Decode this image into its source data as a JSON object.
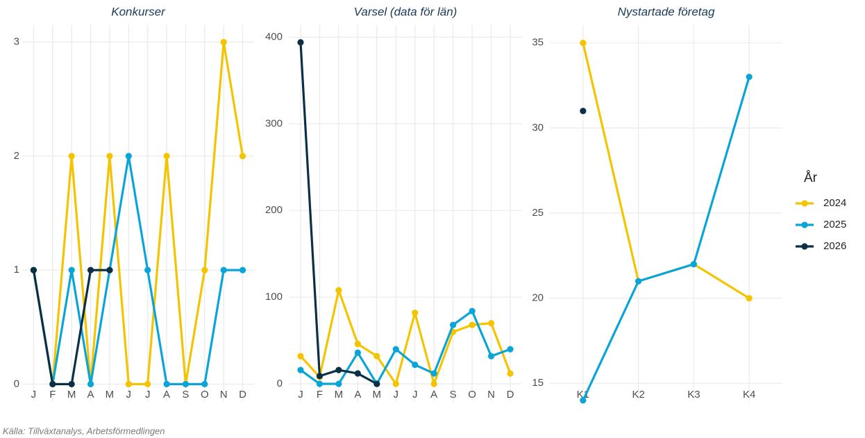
{
  "chart_data": [
    {
      "type": "line",
      "title": "Konkurser",
      "categories": [
        "J",
        "F",
        "M",
        "A",
        "M",
        "J",
        "J",
        "A",
        "S",
        "O",
        "N",
        "D"
      ],
      "ylim": [
        -0.15,
        3.15
      ],
      "yticks": [
        0,
        1,
        2,
        3
      ],
      "grid": true,
      "series": [
        {
          "name": "2024",
          "color": "#f5c400",
          "values": [
            1,
            0,
            2,
            0,
            2,
            0,
            0,
            2,
            0,
            1,
            3,
            2
          ]
        },
        {
          "name": "2025",
          "color": "#0aa5d8",
          "values": [
            1,
            0,
            1,
            0,
            1,
            2,
            1,
            0,
            0,
            0,
            1,
            1
          ]
        },
        {
          "name": "2026",
          "color": "#0b2f45",
          "values": [
            1,
            0,
            0,
            1,
            1,
            null,
            null,
            null,
            null,
            null,
            null,
            null
          ]
        }
      ]
    },
    {
      "type": "line",
      "title": "Varsel (data för län)",
      "categories": [
        "J",
        "F",
        "M",
        "A",
        "M",
        "J",
        "J",
        "A",
        "S",
        "O",
        "N",
        "D"
      ],
      "ylim": [
        -20,
        414
      ],
      "yticks": [
        0,
        100,
        200,
        300,
        400
      ],
      "grid": true,
      "series": [
        {
          "name": "2024",
          "color": "#f5c400",
          "values": [
            32,
            8,
            108,
            46,
            32,
            0,
            82,
            0,
            60,
            68,
            70,
            12
          ]
        },
        {
          "name": "2025",
          "color": "#0aa5d8",
          "values": [
            16,
            0,
            0,
            36,
            0,
            40,
            22,
            12,
            68,
            84,
            32,
            40
          ]
        },
        {
          "name": "2026",
          "color": "#0b2f45",
          "values": [
            394,
            9,
            16,
            12,
            0,
            null,
            null,
            null,
            null,
            null,
            null,
            null
          ]
        }
      ]
    },
    {
      "type": "line",
      "title": "Nystartade företag",
      "categories": [
        "K1",
        "K2",
        "K3",
        "K4"
      ],
      "ylim": [
        13.95,
        36.05
      ],
      "yticks": [
        15,
        20,
        25,
        30,
        35
      ],
      "grid": true,
      "series": [
        {
          "name": "2024",
          "color": "#f5c400",
          "values": [
            35,
            21,
            22,
            20
          ]
        },
        {
          "name": "2025",
          "color": "#0aa5d8",
          "values": [
            14,
            21,
            22,
            33
          ]
        },
        {
          "name": "2026",
          "color": "#0b2f45",
          "values": [
            31,
            null,
            null,
            null
          ]
        }
      ]
    }
  ],
  "legend": {
    "title": "År",
    "position": "right"
  },
  "caption": "Källa: Tillväxtanalys, Arbetsförmedlingen"
}
